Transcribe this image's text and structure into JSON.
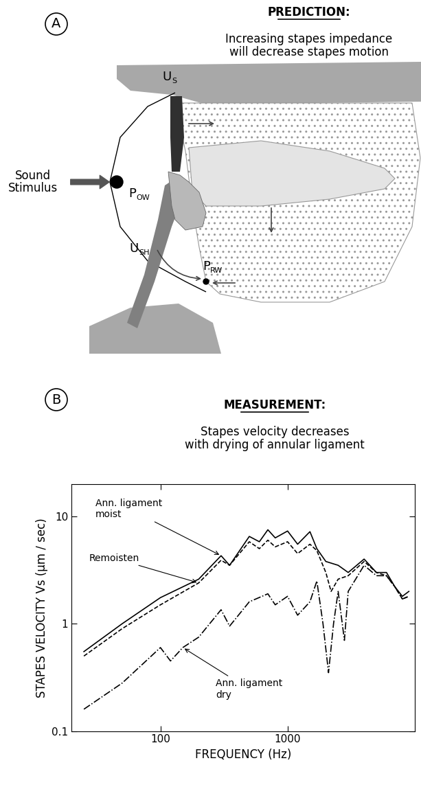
{
  "diagram": {
    "panel_label": "A",
    "heading": "PREDICTION:",
    "text": "Increasing stapes impedance\nwill decrease stapes motion",
    "stimulus_label": "Sound\nStimulus",
    "labels": [
      {
        "base": "U",
        "sub": "S"
      },
      {
        "base": "P",
        "sub": "OW"
      },
      {
        "base": "U",
        "sub": "SH"
      },
      {
        "base": "P",
        "sub": "RW"
      }
    ]
  },
  "chart_data": {
    "type": "line",
    "panel_label": "B",
    "title": "MEASUREMENT:",
    "subtitle": "Stapes velocity decreases\nwith drying of annular ligament",
    "x_label": "FREQUENCY (Hz)",
    "y_label": "STAPES VELOCITY Vs (µm / sec)",
    "log": true,
    "xlim": [
      20,
      10000
    ],
    "ylim": [
      0.1,
      20
    ],
    "xticks": [
      100,
      1000
    ],
    "yticks": [
      0.1,
      1,
      10
    ],
    "series": [
      {
        "name": "Ann. ligament\nmoist",
        "color": "#000000",
        "line_style": "solid",
        "x": [
          25,
          50,
          100,
          200,
          300,
          350,
          500,
          600,
          700,
          800,
          1000,
          1200,
          1500,
          1700,
          2000,
          2500,
          3000,
          4000,
          5000,
          6000,
          7000,
          8000,
          9000
        ],
        "values": [
          0.55,
          1.0,
          1.75,
          2.6,
          4.3,
          3.5,
          6.5,
          5.8,
          7.5,
          6.3,
          7.3,
          5.5,
          7.2,
          5.0,
          3.8,
          3.5,
          3.0,
          4.0,
          3.0,
          3.0,
          2.2,
          1.8,
          2.0
        ]
      },
      {
        "name": "Remoisten",
        "color": "#000000",
        "line_style": "dashed",
        "x": [
          25,
          50,
          100,
          200,
          300,
          350,
          500,
          600,
          700,
          800,
          1000,
          1200,
          1500,
          1700,
          2000,
          2200,
          2500,
          3000,
          4000,
          5000,
          6000,
          7000,
          8000,
          9000
        ],
        "values": [
          0.5,
          0.9,
          1.5,
          2.4,
          3.9,
          3.5,
          5.8,
          5.0,
          6.0,
          5.2,
          5.8,
          4.5,
          5.5,
          4.8,
          3.0,
          2.0,
          2.6,
          2.8,
          3.8,
          3.0,
          2.8,
          2.2,
          1.7,
          1.8
        ]
      },
      {
        "name": "Ann. ligament\ndry",
        "color": "#000000",
        "line_style": "dashdot",
        "x": [
          25,
          50,
          100,
          120,
          150,
          200,
          300,
          350,
          500,
          700,
          800,
          1000,
          1200,
          1500,
          1700,
          1900,
          2100,
          2300,
          2500,
          2800,
          3000,
          4000,
          5000,
          6000,
          7000,
          8000,
          9000
        ],
        "values": [
          0.16,
          0.28,
          0.6,
          0.45,
          0.6,
          0.75,
          1.35,
          0.95,
          1.6,
          1.9,
          1.5,
          1.8,
          1.2,
          1.6,
          2.5,
          1.0,
          0.35,
          1.0,
          2.0,
          0.7,
          2.0,
          3.5,
          2.8,
          2.8,
          2.2,
          1.7,
          1.8
        ]
      }
    ]
  }
}
